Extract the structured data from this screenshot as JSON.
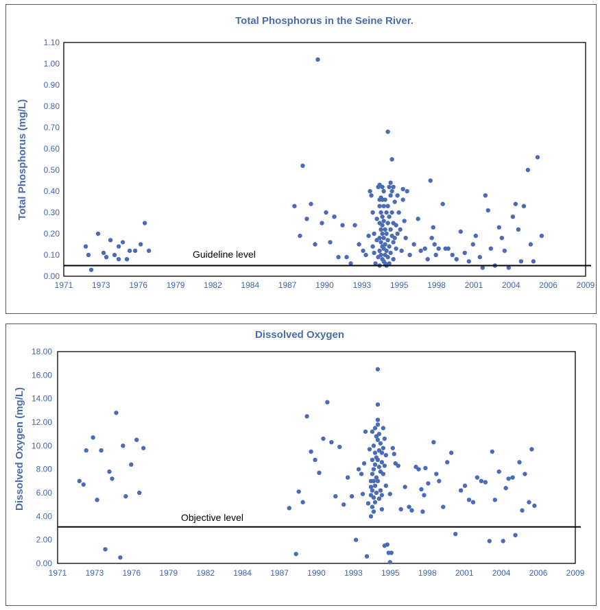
{
  "chart_data": [
    {
      "type": "scatter",
      "title": "Total Phosphorus in the Seine River.",
      "xlabel": "",
      "ylabel": "Total Phosphorus (mg/L)",
      "ylim": [
        0,
        1.1
      ],
      "yticks": [
        "0.00",
        "0.10",
        "0.20",
        "0.30",
        "0.40",
        "0.50",
        "0.60",
        "0.70",
        "0.80",
        "0.90",
        "1.00",
        "1.10"
      ],
      "xtick_labels": [
        "1971",
        "1973",
        "1976",
        "1979",
        "1982",
        "1984",
        "1987",
        "1990",
        "1993",
        "1995",
        "1998",
        "2001",
        "2004",
        "2006",
        "2009"
      ],
      "grid": false,
      "point_color": "#4a6bb8",
      "reference_line": {
        "label": "Guideline level",
        "value": 0.05
      },
      "points": [
        [
          1972.6,
          0.14
        ],
        [
          1972.8,
          0.1
        ],
        [
          1973.0,
          0.03
        ],
        [
          1973.5,
          0.2
        ],
        [
          1973.9,
          0.11
        ],
        [
          1974.1,
          0.09
        ],
        [
          1974.4,
          0.17
        ],
        [
          1974.7,
          0.1
        ],
        [
          1975.0,
          0.14
        ],
        [
          1975.0,
          0.08
        ],
        [
          1975.3,
          0.16
        ],
        [
          1975.6,
          0.08
        ],
        [
          1975.8,
          0.12
        ],
        [
          1976.2,
          0.12
        ],
        [
          1976.6,
          0.15
        ],
        [
          1976.9,
          0.25
        ],
        [
          1977.2,
          0.12
        ],
        [
          1987.8,
          0.33
        ],
        [
          1988.2,
          0.19
        ],
        [
          1988.4,
          0.52
        ],
        [
          1988.7,
          0.27
        ],
        [
          1989.0,
          0.34
        ],
        [
          1989.3,
          0.15
        ],
        [
          1989.5,
          1.02
        ],
        [
          1989.8,
          0.25
        ],
        [
          1990.1,
          0.3
        ],
        [
          1990.4,
          0.16
        ],
        [
          1990.7,
          0.28
        ],
        [
          1991.0,
          0.09
        ],
        [
          1991.3,
          0.24
        ],
        [
          1991.6,
          0.09
        ],
        [
          1991.9,
          0.06
        ],
        [
          1992.2,
          0.24
        ],
        [
          1992.5,
          0.15
        ],
        [
          1992.8,
          0.12
        ],
        [
          1993.0,
          0.1
        ],
        [
          1993.2,
          0.19
        ],
        [
          1993.3,
          0.4
        ],
        [
          1993.4,
          0.38
        ],
        [
          1993.5,
          0.3
        ],
        [
          1993.5,
          0.14
        ],
        [
          1993.6,
          0.2
        ],
        [
          1993.6,
          0.11
        ],
        [
          1993.7,
          0.06
        ],
        [
          1993.8,
          0.27
        ],
        [
          1993.8,
          0.17
        ],
        [
          1993.9,
          0.09
        ],
        [
          1993.9,
          0.42
        ],
        [
          1994.0,
          0.43
        ],
        [
          1994.0,
          0.36
        ],
        [
          1994.0,
          0.33
        ],
        [
          1994.0,
          0.25
        ],
        [
          1994.0,
          0.18
        ],
        [
          1994.0,
          0.12
        ],
        [
          1994.0,
          0.05
        ],
        [
          1994.1,
          0.37
        ],
        [
          1994.1,
          0.3
        ],
        [
          1994.1,
          0.22
        ],
        [
          1994.1,
          0.16
        ],
        [
          1994.1,
          0.1
        ],
        [
          1994.2,
          0.42
        ],
        [
          1994.2,
          0.36
        ],
        [
          1994.2,
          0.28
        ],
        [
          1994.2,
          0.24
        ],
        [
          1994.2,
          0.2
        ],
        [
          1994.2,
          0.14
        ],
        [
          1994.2,
          0.08
        ],
        [
          1994.3,
          0.4
        ],
        [
          1994.3,
          0.33
        ],
        [
          1994.3,
          0.26
        ],
        [
          1994.3,
          0.18
        ],
        [
          1994.3,
          0.13
        ],
        [
          1994.3,
          0.07
        ],
        [
          1994.4,
          0.36
        ],
        [
          1994.4,
          0.22
        ],
        [
          1994.4,
          0.15
        ],
        [
          1994.4,
          0.1
        ],
        [
          1994.4,
          0.06
        ],
        [
          1994.5,
          0.3
        ],
        [
          1994.5,
          0.2
        ],
        [
          1994.5,
          0.12
        ],
        [
          1994.5,
          0.05
        ],
        [
          1994.6,
          0.68
        ],
        [
          1994.6,
          0.33
        ],
        [
          1994.6,
          0.25
        ],
        [
          1994.6,
          0.17
        ],
        [
          1994.6,
          0.09
        ],
        [
          1994.7,
          0.42
        ],
        [
          1994.7,
          0.28
        ],
        [
          1994.7,
          0.14
        ],
        [
          1994.7,
          0.06
        ],
        [
          1994.8,
          0.44
        ],
        [
          1994.8,
          0.38
        ],
        [
          1994.8,
          0.22
        ],
        [
          1994.8,
          0.11
        ],
        [
          1994.9,
          0.55
        ],
        [
          1994.9,
          0.4
        ],
        [
          1994.9,
          0.3
        ],
        [
          1994.9,
          0.19
        ],
        [
          1995.0,
          0.42
        ],
        [
          1995.0,
          0.25
        ],
        [
          1995.0,
          0.16
        ],
        [
          1995.0,
          0.08
        ],
        [
          1995.1,
          0.35
        ],
        [
          1995.1,
          0.18
        ],
        [
          1995.2,
          0.24
        ],
        [
          1995.2,
          0.13
        ],
        [
          1995.3,
          0.38
        ],
        [
          1995.3,
          0.2
        ],
        [
          1995.4,
          0.3
        ],
        [
          1995.5,
          0.22
        ],
        [
          1995.6,
          0.12
        ],
        [
          1995.7,
          0.41
        ],
        [
          1995.7,
          0.36
        ],
        [
          1995.8,
          0.26
        ],
        [
          1995.9,
          0.18
        ],
        [
          1996.0,
          0.4
        ],
        [
          1996.2,
          0.1
        ],
        [
          1996.5,
          0.15
        ],
        [
          1996.8,
          0.27
        ],
        [
          1997.0,
          0.12
        ],
        [
          1997.3,
          0.13
        ],
        [
          1997.5,
          0.08
        ],
        [
          1997.7,
          0.45
        ],
        [
          1997.8,
          0.18
        ],
        [
          1997.9,
          0.23
        ],
        [
          1998.0,
          0.15
        ],
        [
          1998.1,
          0.1
        ],
        [
          1998.3,
          0.13
        ],
        [
          1998.6,
          0.34
        ],
        [
          1998.8,
          0.13
        ],
        [
          1999.0,
          0.13
        ],
        [
          1999.3,
          0.1
        ],
        [
          1999.6,
          0.08
        ],
        [
          1999.9,
          0.21
        ],
        [
          2000.2,
          0.11
        ],
        [
          2000.5,
          0.07
        ],
        [
          2000.8,
          0.15
        ],
        [
          2001.0,
          0.19
        ],
        [
          2001.3,
          0.09
        ],
        [
          2001.5,
          0.04
        ],
        [
          2001.7,
          0.38
        ],
        [
          2001.9,
          0.31
        ],
        [
          2002.1,
          0.13
        ],
        [
          2002.4,
          0.05
        ],
        [
          2002.7,
          0.23
        ],
        [
          2002.9,
          0.18
        ],
        [
          2003.1,
          0.12
        ],
        [
          2003.4,
          0.04
        ],
        [
          2003.7,
          0.28
        ],
        [
          2003.9,
          0.34
        ],
        [
          2004.1,
          0.22
        ],
        [
          2004.3,
          0.07
        ],
        [
          2004.5,
          0.33
        ],
        [
          2004.8,
          0.5
        ],
        [
          2005.0,
          0.15
        ],
        [
          2005.2,
          0.07
        ],
        [
          2005.5,
          0.56
        ],
        [
          2005.8,
          0.19
        ]
      ]
    },
    {
      "type": "scatter",
      "title": "Dissolved Oxygen",
      "xlabel": "",
      "ylabel": "Dissolved Oxygen (mg/L)",
      "ylim": [
        0,
        18
      ],
      "yticks": [
        "0.00",
        "2.00",
        "4.00",
        "6.00",
        "8.00",
        "10.00",
        "12.00",
        "14.00",
        "16.00",
        "18.00"
      ],
      "xtick_labels": [
        "1971",
        "1973",
        "1976",
        "1979",
        "1982",
        "1984",
        "1987",
        "1990",
        "1993",
        "1995",
        "1998",
        "2001",
        "2004",
        "2006",
        "2009"
      ],
      "grid": false,
      "point_color": "#4a6bb8",
      "reference_line": {
        "label": "Objective level",
        "value": 3.1
      },
      "points": [
        [
          1972.6,
          7.0
        ],
        [
          1972.9,
          6.7
        ],
        [
          1973.1,
          9.6
        ],
        [
          1973.6,
          10.7
        ],
        [
          1973.9,
          5.4
        ],
        [
          1974.2,
          9.6
        ],
        [
          1974.5,
          1.2
        ],
        [
          1974.8,
          7.8
        ],
        [
          1975.0,
          7.2
        ],
        [
          1975.3,
          12.8
        ],
        [
          1975.6,
          0.5
        ],
        [
          1975.8,
          10.0
        ],
        [
          1976.0,
          5.7
        ],
        [
          1976.4,
          8.4
        ],
        [
          1976.8,
          10.5
        ],
        [
          1977.0,
          6.0
        ],
        [
          1977.3,
          9.8
        ],
        [
          1988.0,
          4.7
        ],
        [
          1988.5,
          0.8
        ],
        [
          1988.7,
          6.1
        ],
        [
          1989.0,
          5.2
        ],
        [
          1989.3,
          12.5
        ],
        [
          1989.6,
          9.5
        ],
        [
          1989.9,
          8.8
        ],
        [
          1990.2,
          7.7
        ],
        [
          1990.5,
          10.6
        ],
        [
          1990.8,
          13.7
        ],
        [
          1991.1,
          10.3
        ],
        [
          1991.4,
          5.7
        ],
        [
          1991.7,
          9.9
        ],
        [
          1992.0,
          5.0
        ],
        [
          1992.3,
          7.3
        ],
        [
          1992.6,
          5.7
        ],
        [
          1992.9,
          2.0
        ],
        [
          1993.1,
          8.0
        ],
        [
          1993.3,
          7.6
        ],
        [
          1993.4,
          5.9
        ],
        [
          1993.5,
          8.5
        ],
        [
          1993.6,
          11.2
        ],
        [
          1993.7,
          0.6
        ],
        [
          1993.8,
          5.1
        ],
        [
          1993.9,
          9.7
        ],
        [
          1994.0,
          7.0
        ],
        [
          1994.0,
          6.5
        ],
        [
          1994.0,
          5.8
        ],
        [
          1994.0,
          4.0
        ],
        [
          1994.1,
          11.2
        ],
        [
          1994.1,
          8.8
        ],
        [
          1994.1,
          7.6
        ],
        [
          1994.1,
          6.2
        ],
        [
          1994.1,
          4.8
        ],
        [
          1994.2,
          10.0
        ],
        [
          1994.2,
          8.0
        ],
        [
          1994.2,
          7.0
        ],
        [
          1994.2,
          5.6
        ],
        [
          1994.2,
          4.4
        ],
        [
          1994.3,
          11.5
        ],
        [
          1994.3,
          9.4
        ],
        [
          1994.3,
          8.4
        ],
        [
          1994.3,
          6.6
        ],
        [
          1994.3,
          5.2
        ],
        [
          1994.4,
          10.8
        ],
        [
          1994.4,
          9.0
        ],
        [
          1994.4,
          7.3
        ],
        [
          1994.4,
          6.0
        ],
        [
          1994.5,
          16.5
        ],
        [
          1994.5,
          13.5
        ],
        [
          1994.5,
          12.2
        ],
        [
          1994.5,
          11.8
        ],
        [
          1994.5,
          10.5
        ],
        [
          1994.5,
          8.8
        ],
        [
          1994.5,
          7.0
        ],
        [
          1994.6,
          11.0
        ],
        [
          1994.6,
          9.6
        ],
        [
          1994.6,
          8.2
        ],
        [
          1994.6,
          5.5
        ],
        [
          1994.7,
          10.2
        ],
        [
          1994.7,
          7.8
        ],
        [
          1994.7,
          6.2
        ],
        [
          1994.8,
          9.4
        ],
        [
          1994.8,
          8.6
        ],
        [
          1994.8,
          5.8
        ],
        [
          1994.8,
          4.6
        ],
        [
          1994.9,
          11.5
        ],
        [
          1994.9,
          9.8
        ],
        [
          1994.9,
          7.6
        ],
        [
          1995.0,
          10.6
        ],
        [
          1995.0,
          8.3
        ],
        [
          1995.0,
          1.5
        ],
        [
          1995.1,
          9.2
        ],
        [
          1995.1,
          6.6
        ],
        [
          1995.2,
          1.6
        ],
        [
          1995.3,
          0.9
        ],
        [
          1995.4,
          0.1
        ],
        [
          1995.4,
          5.9
        ],
        [
          1995.5,
          0.9
        ],
        [
          1995.6,
          9.8
        ],
        [
          1995.7,
          9.3
        ],
        [
          1995.8,
          8.5
        ],
        [
          1996.0,
          8.3
        ],
        [
          1996.2,
          4.6
        ],
        [
          1996.5,
          6.5
        ],
        [
          1996.8,
          4.8
        ],
        [
          1997.0,
          4.5
        ],
        [
          1997.3,
          8.2
        ],
        [
          1997.5,
          8.0
        ],
        [
          1997.7,
          6.3
        ],
        [
          1997.8,
          4.4
        ],
        [
          1997.9,
          5.8
        ],
        [
          1998.0,
          8.1
        ],
        [
          1998.2,
          6.8
        ],
        [
          1998.6,
          10.3
        ],
        [
          1998.8,
          7.6
        ],
        [
          1999.0,
          7.0
        ],
        [
          1999.3,
          4.8
        ],
        [
          1999.6,
          8.6
        ],
        [
          1999.9,
          9.4
        ],
        [
          2000.2,
          2.5
        ],
        [
          2000.6,
          6.2
        ],
        [
          2000.9,
          6.6
        ],
        [
          2001.2,
          5.4
        ],
        [
          2001.5,
          5.2
        ],
        [
          2001.8,
          7.3
        ],
        [
          2002.1,
          7.0
        ],
        [
          2002.4,
          6.9
        ],
        [
          2002.7,
          1.9
        ],
        [
          2002.9,
          9.5
        ],
        [
          2003.1,
          5.4
        ],
        [
          2003.4,
          7.8
        ],
        [
          2003.7,
          1.9
        ],
        [
          2003.9,
          6.4
        ],
        [
          2004.1,
          7.2
        ],
        [
          2004.4,
          7.3
        ],
        [
          2004.6,
          2.4
        ],
        [
          2004.9,
          8.6
        ],
        [
          2005.1,
          4.5
        ],
        [
          2005.3,
          7.6
        ],
        [
          2005.6,
          5.2
        ],
        [
          2005.8,
          9.7
        ],
        [
          2006.0,
          4.9
        ]
      ]
    }
  ]
}
